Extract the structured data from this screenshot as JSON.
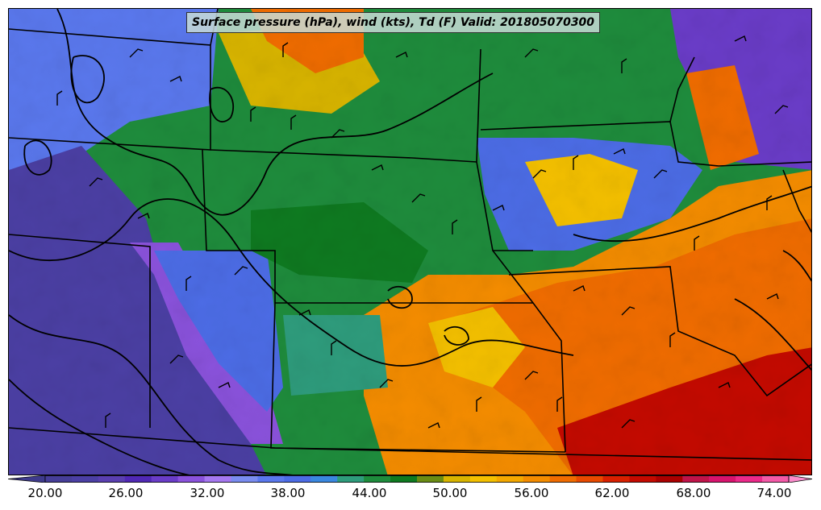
{
  "title": "Surface pressure (hPa), wind (kts), Td (F) Valid: 201805070300",
  "colorbar": {
    "min": 20,
    "max": 74,
    "step": 2,
    "extend": "both",
    "tick_labels": [
      "20.00",
      "26.00",
      "32.00",
      "38.00",
      "44.00",
      "50.00",
      "56.00",
      "62.00",
      "68.00",
      "74.00"
    ],
    "colors": [
      "#3e3a8c",
      "#463e98",
      "#4b3fa4",
      "#5a3fb0",
      "#5028b4",
      "#6a3cc8",
      "#8a52dc",
      "#a678f0",
      "#7a8cf0",
      "#5a78ee",
      "#4c6ce6",
      "#3a88e0",
      "#2e9c7c",
      "#1e8c3c",
      "#0e7a20",
      "#6a8c14",
      "#d8b400",
      "#f4c000",
      "#f4a800",
      "#f48c00",
      "#f06c00",
      "#e84a00",
      "#d82000",
      "#c40a00",
      "#aa0000",
      "#c0144a",
      "#d8146e",
      "#ec2a8a",
      "#f45aa8",
      "#fc8ccc"
    ]
  },
  "map": {
    "field": "Td (F)",
    "overlays": [
      "surface pressure contours (hPa)",
      "wind barbs (kts)",
      "state boundaries"
    ]
  }
}
